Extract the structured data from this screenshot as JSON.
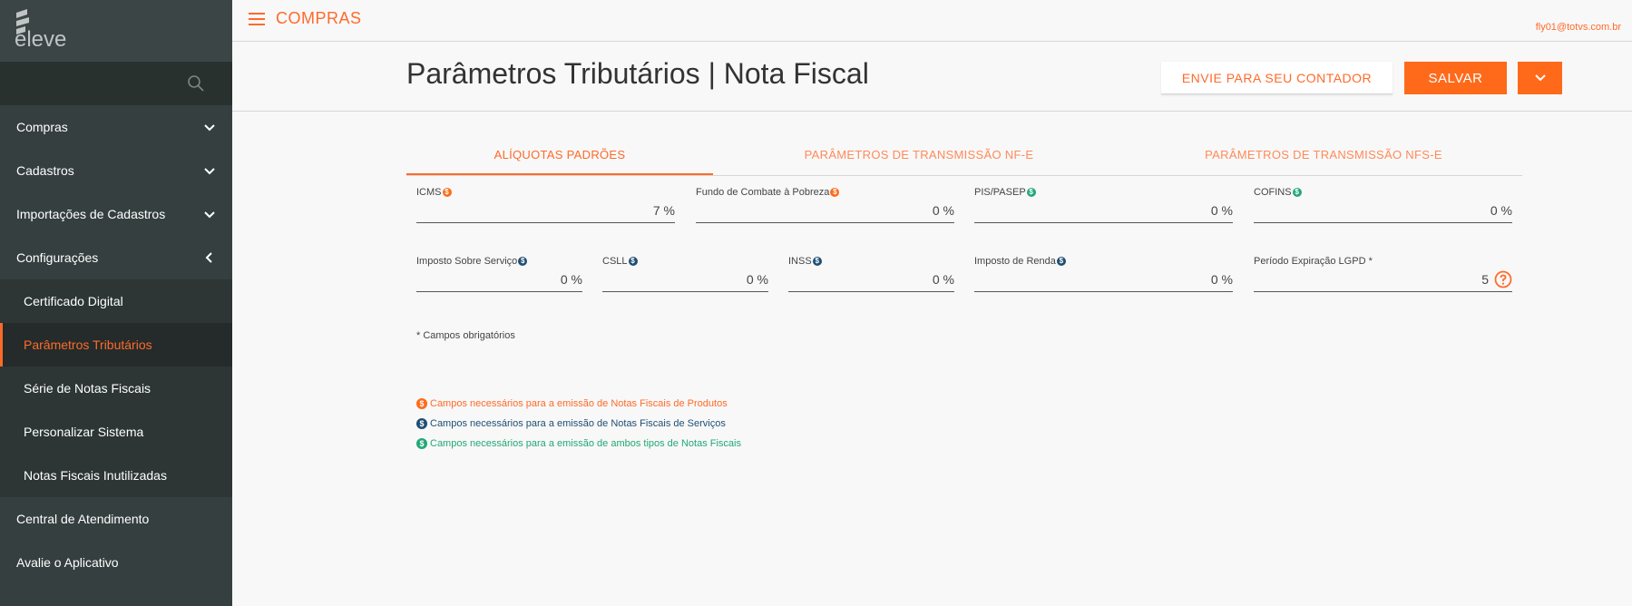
{
  "brand": {
    "logo_text": "eleve"
  },
  "topbar": {
    "app_title": "COMPRAS",
    "user_email": "fly01@totvs.com.br"
  },
  "sidebar": {
    "search_placeholder": "",
    "items": [
      {
        "label": "Compras",
        "icon": "chevron-down-icon"
      },
      {
        "label": "Cadastros",
        "icon": "chevron-down-icon"
      },
      {
        "label": "Importações de Cadastros",
        "icon": "chevron-down-icon"
      },
      {
        "label": "Configurações",
        "icon": "chevron-left-icon"
      }
    ],
    "sub_items": [
      {
        "label": "Certificado Digital"
      },
      {
        "label": "Parâmetros Tributários"
      },
      {
        "label": "Série de Notas Fiscais"
      },
      {
        "label": "Personalizar Sistema"
      },
      {
        "label": "Notas Fiscais Inutilizadas"
      }
    ],
    "bottom_items": [
      {
        "label": "Central de Atendimento"
      },
      {
        "label": "Avalie o Aplicativo"
      }
    ]
  },
  "header": {
    "title": "Parâmetros Tributários | Nota Fiscal",
    "contador_label": "ENVIE PARA SEU CONTADOR",
    "save_label": "SALVAR"
  },
  "tabs": [
    {
      "label": "ALÍQUOTAS PADRÕES",
      "active": true
    },
    {
      "label": "PARÂMETROS DE TRANSMISSÃO NF-E",
      "active": false
    },
    {
      "label": "PARÂMETROS DE TRANSMISSÃO NFS-E",
      "active": false
    }
  ],
  "fields": {
    "icms": {
      "label": "ICMS",
      "value": "7 %"
    },
    "fcp": {
      "label": "Fundo de Combate à Pobreza",
      "value": "0 %"
    },
    "pis": {
      "label": "PIS/PASEP",
      "value": "0 %"
    },
    "cofins": {
      "label": "COFINS",
      "value": "0 %"
    },
    "iss": {
      "label": "Imposto Sobre Serviço",
      "value": "0 %"
    },
    "csll": {
      "label": "CSLL",
      "value": "0 %"
    },
    "inss": {
      "label": "INSS",
      "value": "0 %"
    },
    "ir": {
      "label": "Imposto de Renda",
      "value": "0 %"
    },
    "lgpd": {
      "label": "Período Expiração LGPD *",
      "value": "5"
    }
  },
  "coin_symbol": "$",
  "required_note": "* Campos obrigatórios",
  "legend": {
    "produtos": "Campos necessários para a emissão de Notas Fiscais de Produtos",
    "servicos": "Campos necessários para a emissão de Notas Fiscais de Serviços",
    "ambos": "Campos necessários para a emissão de ambos tipos de Notas Fiscais"
  },
  "colors": {
    "accent": "#ff6a2a",
    "sidebar": "#353f3f",
    "blue_coin": "#1f4e73",
    "green_coin": "#22a876"
  }
}
